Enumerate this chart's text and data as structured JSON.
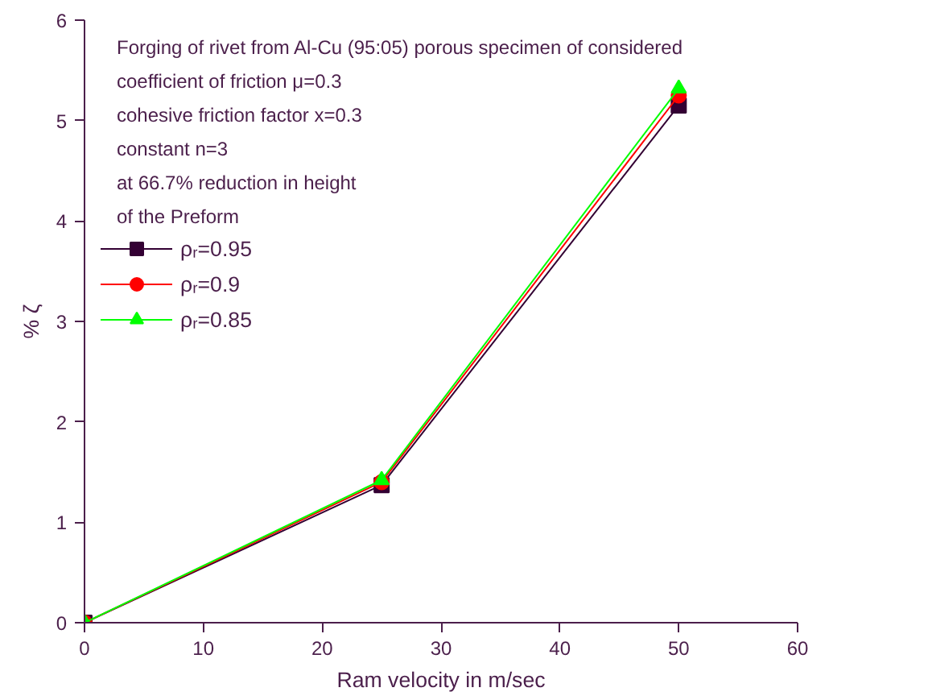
{
  "chart_data": {
    "type": "line",
    "xlabel": "Ram velocity in m/sec",
    "ylabel": "% ζ",
    "x": [
      0,
      25,
      50
    ],
    "series": [
      {
        "name": "ρᵣ=0.95",
        "color": "#330033",
        "marker": "square",
        "values": [
          0,
          1.37,
          5.15
        ]
      },
      {
        "name": "ρᵣ=0.9",
        "color": "#ff0000",
        "marker": "circle",
        "values": [
          0,
          1.4,
          5.25
        ]
      },
      {
        "name": "ρᵣ=0.85",
        "color": "#00ff00",
        "marker": "triangle",
        "values": [
          0,
          1.42,
          5.32
        ]
      }
    ],
    "annotations": [
      "Forging of rivet from Al-Cu (95:05) porous specimen of considered",
      "coefficient of friction μ=0.3",
      "cohesive friction factor x=0.3",
      "constant n=3",
      "at 66.7% reduction in height",
      "of the Preform"
    ],
    "xlim": [
      0,
      60
    ],
    "xticks": [
      0,
      10,
      20,
      30,
      40,
      50,
      60
    ],
    "ylim": [
      0,
      6
    ],
    "yticks": [
      0,
      1,
      2,
      3,
      4,
      5,
      6
    ],
    "grid": false,
    "legend": "top left",
    "line_style": "solid"
  }
}
